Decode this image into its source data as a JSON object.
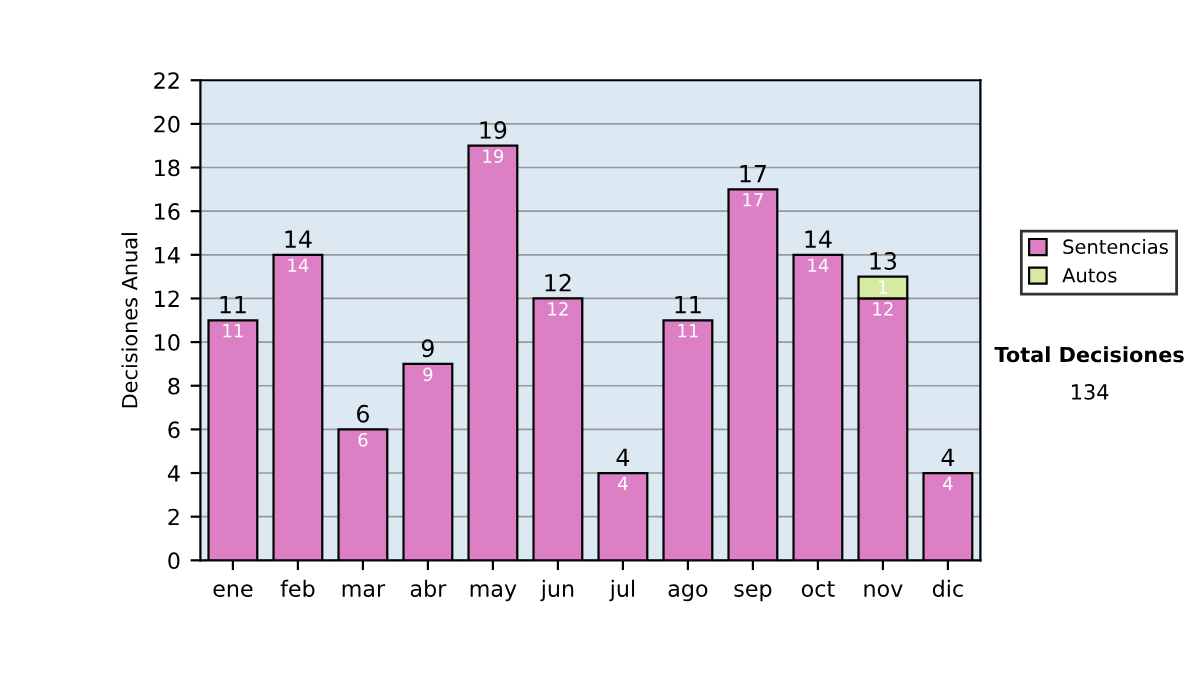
{
  "chart_data": {
    "type": "bar",
    "ylabel": "Decisiones Anual",
    "categories": [
      "ene",
      "feb",
      "mar",
      "abr",
      "may",
      "jun",
      "jul",
      "ago",
      "sep",
      "oct",
      "nov",
      "dic"
    ],
    "series": [
      {
        "name": "Sentencias",
        "color": "#dd7fc4",
        "values": [
          11,
          14,
          6,
          9,
          19,
          12,
          4,
          11,
          17,
          14,
          12,
          4
        ],
        "value_labels": [
          "11",
          "14",
          "6",
          "9",
          "19",
          "12",
          "4",
          "11",
          "17",
          "14",
          "12",
          "4"
        ]
      },
      {
        "name": "Autos",
        "color": "#d6eaa4",
        "values": [
          null,
          null,
          null,
          null,
          null,
          null,
          null,
          null,
          null,
          null,
          1,
          null
        ],
        "value_labels": [
          null,
          null,
          null,
          null,
          null,
          null,
          null,
          null,
          null,
          null,
          "1",
          null
        ]
      }
    ],
    "stacked": true,
    "totals": [
      "11",
      "14",
      "6",
      "9",
      "19",
      "12",
      "4",
      "11",
      "17",
      "14",
      "13",
      "4"
    ],
    "ylim": [
      0,
      22
    ],
    "yticks": [
      0,
      2,
      4,
      6,
      8,
      10,
      12,
      14,
      16,
      18,
      20,
      22
    ],
    "grid": "y",
    "legend": "right",
    "annotations": [
      "Total Decisiones",
      "134"
    ]
  }
}
